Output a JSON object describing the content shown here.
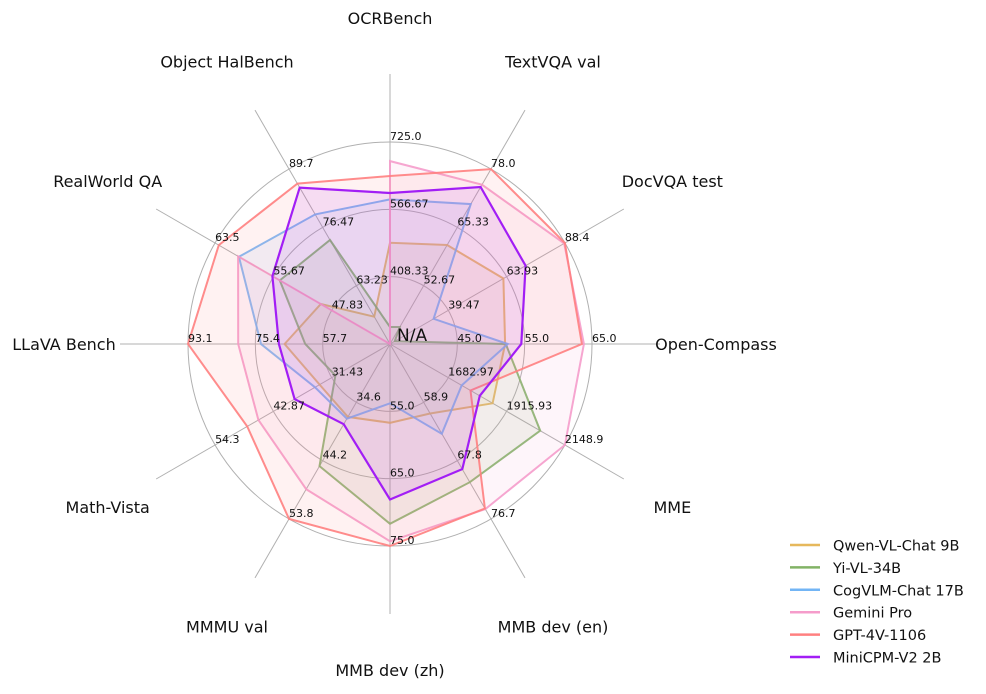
{
  "chart_data": {
    "type": "radar",
    "center_label": "N/A",
    "axes": [
      {
        "label": "Open-Compass",
        "range": [
          35,
          65
        ],
        "ticks": [
          "45.0",
          "55.0",
          "65.0"
        ]
      },
      {
        "label": "DocVQA test",
        "range": [
          15,
          88.4
        ],
        "ticks": [
          "39.47",
          "63.93",
          "88.4"
        ]
      },
      {
        "label": "TextVQA val",
        "range": [
          40,
          78.0
        ],
        "ticks": [
          "52.67",
          "65.33",
          "78.0"
        ]
      },
      {
        "label": "OCRBench",
        "range": [
          250,
          725.0
        ],
        "ticks": [
          "408.33",
          "566.67",
          "725.0"
        ]
      },
      {
        "label": "Object HalBench",
        "range": [
          50,
          89.7
        ],
        "ticks": [
          "63.23",
          "76.47",
          "89.7"
        ]
      },
      {
        "label": "RealWorld QA",
        "range": [
          40,
          63.5
        ],
        "ticks": [
          "47.83",
          "55.67",
          "63.5"
        ]
      },
      {
        "label": "LLaVA Bench",
        "range": [
          40,
          93.1
        ],
        "ticks": [
          "57.7",
          "75.4",
          "93.1"
        ]
      },
      {
        "label": "Math-Vista",
        "range": [
          20,
          54.3
        ],
        "ticks": [
          "31.43",
          "42.87",
          "54.3"
        ]
      },
      {
        "label": "MMMU val",
        "range": [
          25,
          53.8
        ],
        "ticks": [
          "34.6",
          "44.2",
          "53.8"
        ]
      },
      {
        "label": "MMB dev (zh)",
        "range": [
          45,
          75.0
        ],
        "ticks": [
          "55.0",
          "65.0",
          "75.0"
        ]
      },
      {
        "label": "MMB dev (en)",
        "range": [
          50,
          76.7
        ],
        "ticks": [
          "58.9",
          "67.8",
          "76.7"
        ]
      },
      {
        "label": "MME",
        "range": [
          1450,
          2148.9
        ],
        "ticks": [
          "1682.97",
          "1915.93",
          "2148.9"
        ]
      }
    ],
    "series": [
      {
        "name": "Qwen-VL-Chat 9B",
        "color": "#e6b85c",
        "values": [
          52.1,
          62.6,
          61.5,
          488,
          56.2,
          49.3,
          67.7,
          33.8,
          37.0,
          56.7,
          60.6,
          1860
        ]
      },
      {
        "name": "Yi-VL-34B",
        "color": "#82b366",
        "values": [
          52.2,
          17.0,
          43.7,
          290,
          73.6,
          54.8,
          62.3,
          30.7,
          45.1,
          71.7,
          71.1,
          2050.2
        ]
      },
      {
        "name": "CogVLM-Chat 17B",
        "color": "#73b5f5",
        "values": [
          52.5,
          33.3,
          70.4,
          590,
          79.4,
          60.3,
          73.9,
          34.7,
          37.3,
          53.8,
          63.7,
          1736.6
        ]
      },
      {
        "name": "Gemini Pro",
        "color": "#f59ccb",
        "values": [
          63.8,
          88.1,
          74.6,
          680,
          null,
          60.4,
          79.9,
          45.8,
          48.9,
          74.3,
          75.2,
          2148.9
        ]
      },
      {
        "name": "GPT-4V-1106",
        "color": "#ff8080",
        "values": [
          63.5,
          88.4,
          78.0,
          645,
          86.4,
          63.0,
          93.1,
          48.0,
          53.8,
          75.0,
          75.1,
          1771.5
        ]
      },
      {
        "name": "MiniCPM-V2 2B",
        "color": "#a21ef5",
        "values": [
          54.5,
          71.9,
          74.1,
          605,
          85.5,
          55.8,
          69.2,
          38.7,
          38.2,
          68.1,
          69.1,
          1808.6
        ]
      }
    ],
    "legend_position": "bottom-right"
  }
}
